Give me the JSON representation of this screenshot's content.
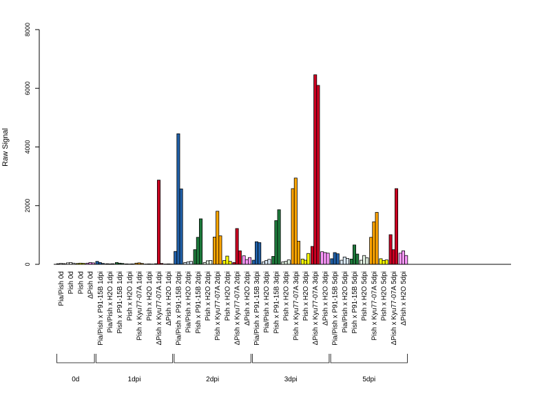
{
  "chart_data": {
    "type": "bar",
    "title": "",
    "xlabel": "",
    "ylabel": "Raw Signal",
    "ylim": [
      0,
      8000
    ],
    "yticks": [
      0,
      2000,
      4000,
      6000,
      8000
    ],
    "grid": false,
    "legend": "none",
    "categories": [
      {
        "label": "Pia/Pish 0d",
        "color": "#ffffff",
        "values": [
          20,
          30,
          25
        ]
      },
      {
        "label": "Pish 0d",
        "color": "#ffffff",
        "values": [
          50,
          60,
          40
        ]
      },
      {
        "label": "Pish 0d",
        "color": "#ffff00",
        "values": [
          30,
          40,
          35
        ]
      },
      {
        "label": "ΔPish 0d",
        "color": "#ff99ff",
        "values": [
          40,
          60,
          50
        ]
      },
      {
        "label": "Pia/Pish x P91-15B 1dpi",
        "color": "#2060a8",
        "values": [
          100,
          60,
          30
        ]
      },
      {
        "label": "Pia/Pish x H2O 1dpi",
        "color": "#d9e8f5",
        "values": [
          20,
          15,
          20
        ]
      },
      {
        "label": "Pish x P91-15B 1dpi",
        "color": "#1e7a3c",
        "values": [
          60,
          40,
          30
        ]
      },
      {
        "label": "Pish x H2O 1dpi",
        "color": "#e0f0e0",
        "values": [
          15,
          10,
          15
        ]
      },
      {
        "label": "Pish x Kyu77-07A 1dpi",
        "color": "#ffa500",
        "values": [
          40,
          50,
          30
        ]
      },
      {
        "label": "Pish x H2O 1dpi",
        "color": "#ffff00",
        "values": [
          10,
          15,
          10
        ]
      },
      {
        "label": "ΔPish x Kyu77-07A 1dpi",
        "color": "#cc0022",
        "values": [
          20,
          2870,
          30
        ]
      },
      {
        "label": "ΔPish x H2O 1dpi",
        "color": "#ff99ff",
        "values": [
          10,
          15,
          10
        ]
      },
      {
        "label": "Pia/Pish x P91-15B 2dpi",
        "color": "#2060a8",
        "values": [
          440,
          4450,
          2570
        ]
      },
      {
        "label": "Pia/Pish x H2O 2dpi",
        "color": "#d9e8f5",
        "values": [
          60,
          80,
          100
        ]
      },
      {
        "label": "Pish x P91-15B 2dpi",
        "color": "#1e7a3c",
        "values": [
          500,
          920,
          1550
        ]
      },
      {
        "label": "Pish x H2O 2dpi",
        "color": "#e0f0e0",
        "values": [
          60,
          120,
          130
        ]
      },
      {
        "label": "Pish x Kyu77-07A 2dpi",
        "color": "#ffa500",
        "values": [
          930,
          1810,
          970
        ]
      },
      {
        "label": "Pish x H2O 2dpi",
        "color": "#ffff00",
        "values": [
          130,
          280,
          100
        ]
      },
      {
        "label": "ΔPish x Kyu77-07A 2dpi",
        "color": "#cc0022",
        "values": [
          60,
          1220,
          460
        ]
      },
      {
        "label": "ΔPish x H2O 2dpi",
        "color": "#ff99ff",
        "values": [
          290,
          160,
          230
        ]
      },
      {
        "label": "Pia/Pish x P91-15B 3dpi",
        "color": "#2060a8",
        "values": [
          140,
          770,
          740
        ]
      },
      {
        "label": "Pia/Pish x H2O 3dpi",
        "color": "#d9e8f5",
        "values": [
          80,
          130,
          170
        ]
      },
      {
        "label": "Pish x P91-15B 3dpi",
        "color": "#1e7a3c",
        "values": [
          270,
          1490,
          1860
        ]
      },
      {
        "label": "Pish x H2O 3dpi",
        "color": "#e0f0e0",
        "values": [
          80,
          100,
          150
        ]
      },
      {
        "label": "Pish x Kyu77-07A 3dpi",
        "color": "#ffa500",
        "values": [
          2580,
          2940,
          790
        ]
      },
      {
        "label": "Pish x H2O 3dpi",
        "color": "#ffff00",
        "values": [
          180,
          140,
          370
        ]
      },
      {
        "label": "ΔPish x Kyu77-07A 3dpi",
        "color": "#cc0022",
        "values": [
          610,
          6460,
          6100
        ]
      },
      {
        "label": "ΔPish x H2O 3dpi",
        "color": "#ff99ff",
        "values": [
          430,
          400,
          380
        ]
      },
      {
        "label": "Pia/Pish x P91-15B 5dpi",
        "color": "#2060a8",
        "values": [
          190,
          400,
          360
        ]
      },
      {
        "label": "Pia/Pish x H2O 5dpi",
        "color": "#d9e8f5",
        "values": [
          140,
          250,
          200
        ]
      },
      {
        "label": "Pish x P91-15B 5dpi",
        "color": "#1e7a3c",
        "values": [
          180,
          660,
          350
        ]
      },
      {
        "label": "Pish x H2O 5dpi",
        "color": "#e0f0e0",
        "values": [
          140,
          300,
          220
        ]
      },
      {
        "label": "Pish x Kyu77-07A 5dpi",
        "color": "#ffa500",
        "values": [
          920,
          1450,
          1770
        ]
      },
      {
        "label": "Pish x H2O 5dpi",
        "color": "#ffff00",
        "values": [
          190,
          130,
          150
        ]
      },
      {
        "label": "ΔPish x Kyu77-07A 5dpi",
        "color": "#cc0022",
        "values": [
          1010,
          500,
          2580
        ]
      },
      {
        "label": "ΔPish x H2O 5dpi",
        "color": "#ff99ff",
        "values": [
          380,
          460,
          300
        ]
      }
    ],
    "groups": [
      {
        "label": "0d",
        "start": 0,
        "end": 3
      },
      {
        "label": "1dpi",
        "start": 4,
        "end": 11
      },
      {
        "label": "2dpi",
        "start": 12,
        "end": 19
      },
      {
        "label": "3dpi",
        "start": 20,
        "end": 27
      },
      {
        "label": "5dpi",
        "start": 28,
        "end": 35
      }
    ]
  }
}
